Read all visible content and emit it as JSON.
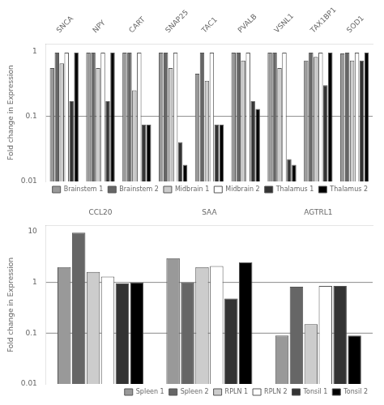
{
  "chart_data": [
    {
      "type": "bar",
      "categories": [
        "SNCA",
        "NPY",
        "CART",
        "SNAP25",
        "TAC1",
        "PVALB",
        "VSNL1",
        "TAX1BP1",
        "SOD1"
      ],
      "series": [
        {
          "name": "Brainstem 1",
          "color": "#999999",
          "values": [
            0.55,
            0.95,
            0.95,
            0.95,
            0.45,
            0.95,
            0.95,
            0.72,
            0.92
          ]
        },
        {
          "name": "Brainstem 2",
          "color": "#666666",
          "values": [
            0.95,
            0.95,
            0.95,
            0.95,
            0.95,
            0.95,
            0.95,
            0.95,
            0.95
          ]
        },
        {
          "name": "Midbrain 1",
          "color": "#cccccc",
          "values": [
            0.65,
            0.55,
            0.25,
            0.55,
            0.35,
            0.72,
            0.55,
            0.82,
            0.72
          ]
        },
        {
          "name": "Midbrain 2",
          "color": "#ffffff",
          "values": [
            0.95,
            0.95,
            0.95,
            0.95,
            0.95,
            0.95,
            0.95,
            0.95,
            0.95
          ]
        },
        {
          "name": "Thalamus 1",
          "color": "#333333",
          "values": [
            0.17,
            0.17,
            0.075,
            0.04,
            0.075,
            0.17,
            0.022,
            0.3,
            0.72
          ]
        },
        {
          "name": "Thalamus 2",
          "color": "#000000",
          "values": [
            0.95,
            0.95,
            0.075,
            0.018,
            0.075,
            0.13,
            0.018,
            0.95,
            0.95
          ]
        }
      ],
      "ylabel": "Fold change in Expression",
      "log": "y",
      "ylim": [
        0.01,
        1.3
      ],
      "yticks": [
        0.01,
        0.1,
        1
      ],
      "hlines": [
        0.1
      ],
      "legend": "lower right",
      "grid": false
    },
    {
      "type": "bar",
      "categories": [
        "CCL20",
        "SAA",
        "AGTRL1"
      ],
      "series": [
        {
          "name": "Spleen 1",
          "color": "#999999",
          "values": [
            2.0,
            3.0,
            0.09
          ]
        },
        {
          "name": "Spleen 2",
          "color": "#666666",
          "values": [
            9.5,
            1.0,
            0.82
          ]
        },
        {
          "name": "RPLN 1",
          "color": "#cccccc",
          "values": [
            1.6,
            2.0,
            0.15
          ]
        },
        {
          "name": "RPLN 2",
          "color": "#ffffff",
          "values": [
            1.3,
            2.1,
            0.85
          ]
        },
        {
          "name": "Tonsil 1",
          "color": "#333333",
          "values": [
            0.95,
            0.48,
            0.85
          ]
        },
        {
          "name": "Tonsil 2",
          "color": "#000000",
          "values": [
            1.0,
            2.5,
            0.09
          ]
        }
      ],
      "ylabel": "Fold change in Expression",
      "log": "y",
      "ylim": [
        0.01,
        13.0
      ],
      "yticks": [
        0.01,
        0.1,
        1,
        10
      ],
      "hlines": [
        0.1,
        1.0
      ],
      "legend": "lower right",
      "grid": false
    }
  ]
}
